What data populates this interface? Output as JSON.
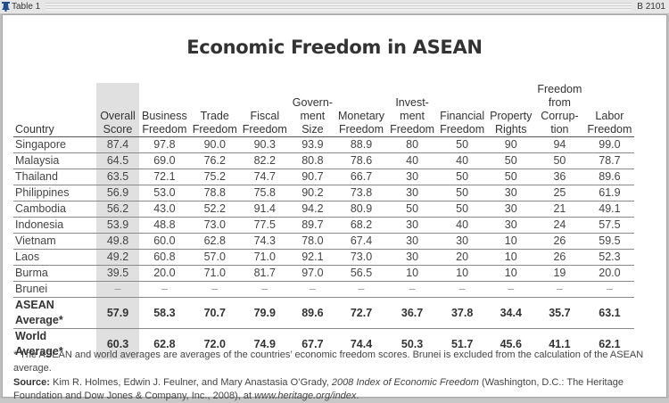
{
  "header": {
    "label": "Table 1",
    "code": "B 2101",
    "icon": "liberty-bell-icon"
  },
  "title": "Economic Freedom in ASEAN",
  "table": {
    "columns": [
      {
        "line1": "",
        "line2": "",
        "line3": "",
        "line4": "Country"
      },
      {
        "line1": "",
        "line2": "",
        "line3": "Overall",
        "line4": "Score"
      },
      {
        "line1": "",
        "line2": "",
        "line3": "Business",
        "line4": "Freedom"
      },
      {
        "line1": "",
        "line2": "",
        "line3": "Trade",
        "line4": "Freedom"
      },
      {
        "line1": "",
        "line2": "",
        "line3": "Fiscal",
        "line4": "Freedom"
      },
      {
        "line1": "",
        "line2": "Govern-",
        "line3": "ment",
        "line4": "Size"
      },
      {
        "line1": "",
        "line2": "",
        "line3": "Monetary",
        "line4": "Freedom"
      },
      {
        "line1": "",
        "line2": "Invest-",
        "line3": "ment",
        "line4": "Freedom"
      },
      {
        "line1": "",
        "line2": "",
        "line3": "Financial",
        "line4": "Freedom"
      },
      {
        "line1": "",
        "line2": "",
        "line3": "Property",
        "line4": "Rights"
      },
      {
        "line1": "Freedom",
        "line2": "from",
        "line3": "Corrup-",
        "line4": "tion"
      },
      {
        "line1": "",
        "line2": "",
        "line3": "Labor",
        "line4": "Freedom"
      }
    ],
    "rows": [
      [
        "Singapore",
        "87.4",
        "97.8",
        "90.0",
        "90.3",
        "93.9",
        "88.9",
        "80",
        "50",
        "90",
        "94",
        "99.0"
      ],
      [
        "Malaysia",
        "64.5",
        "69.0",
        "76.2",
        "82.2",
        "80.8",
        "78.6",
        "40",
        "40",
        "50",
        "50",
        "78.7"
      ],
      [
        "Thailand",
        "63.5",
        "72.1",
        "75.2",
        "74.7",
        "90.7",
        "66.7",
        "30",
        "50",
        "50",
        "36",
        "89.6"
      ],
      [
        "Philippines",
        "56.9",
        "53.0",
        "78.8",
        "75.8",
        "90.2",
        "73.8",
        "30",
        "50",
        "30",
        "25",
        "61.9"
      ],
      [
        "Cambodia",
        "56.2",
        "43.0",
        "52.2",
        "91.4",
        "94.2",
        "80.9",
        "50",
        "50",
        "30",
        "21",
        "49.1"
      ],
      [
        "Indonesia",
        "53.9",
        "48.8",
        "73.0",
        "77.5",
        "89.7",
        "68.2",
        "30",
        "40",
        "30",
        "24",
        "57.5"
      ],
      [
        "Vietnam",
        "49.8",
        "60.0",
        "62.8",
        "74.3",
        "78.0",
        "67.4",
        "30",
        "30",
        "10",
        "26",
        "59.5"
      ],
      [
        "Laos",
        "49.2",
        "60.8",
        "57.0",
        "71.0",
        "92.1",
        "73.0",
        "30",
        "20",
        "10",
        "26",
        "52.3"
      ],
      [
        "Burma",
        "39.5",
        "20.0",
        "71.0",
        "81.7",
        "97.0",
        "56.5",
        "10",
        "10",
        "10",
        "19",
        "20.0"
      ],
      [
        "Brunei",
        "–",
        "–",
        "–",
        "–",
        "–",
        "–",
        "–",
        "–",
        "–",
        "–",
        "–"
      ]
    ],
    "averages": [
      [
        "ASEAN Average*",
        "57.9",
        "58.3",
        "70.7",
        "79.9",
        "89.6",
        "72.7",
        "36.7",
        "37.8",
        "34.4",
        "35.7",
        "63.1"
      ],
      [
        "World Average*",
        "60.3",
        "62.8",
        "72.0",
        "74.9",
        "67.7",
        "74.4",
        "50.3",
        "51.7",
        "45.6",
        "41.1",
        "62.1"
      ]
    ]
  },
  "footnote": "* The ASEAN and world averages are averages of the countries’ economic freedom scores. Brunei is excluded from the calculation of the ASEAN average.",
  "source": {
    "label": "Source:",
    "authors": " Kim R. Holmes, Edwin J. Feulner, and Mary Anastasia O’Grady, ",
    "publication": "2008 Index of Economic Freedom",
    "details": " (Washington, D.C.: The Heritage Foundation and Dow Jones & Company, Inc., 2008), at ",
    "url": "www.heritage.org/index",
    "end": "."
  },
  "colors": {
    "shade": "#e0e0e0",
    "bell": "#1f4e8c"
  }
}
